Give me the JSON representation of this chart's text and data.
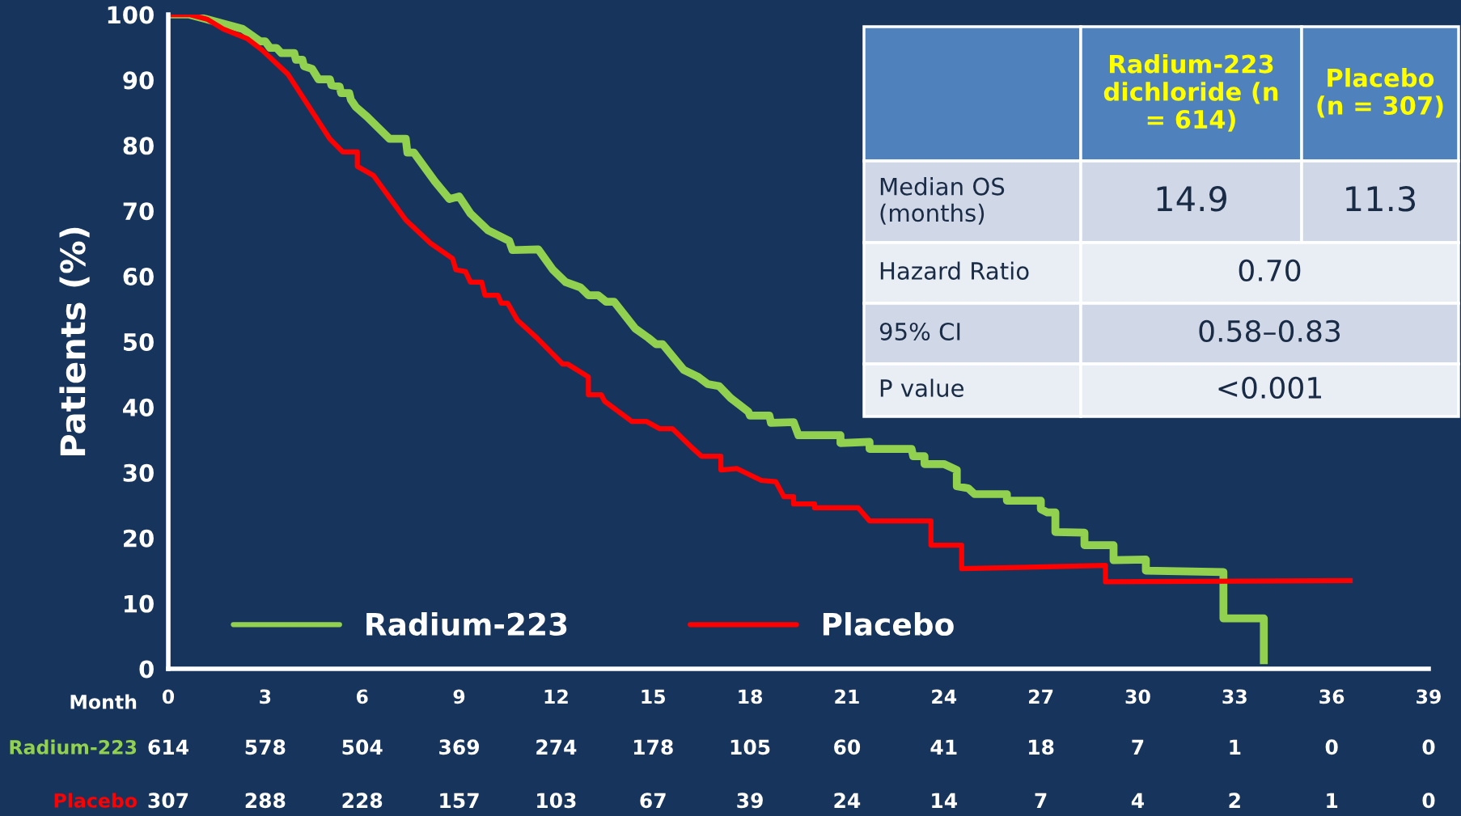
{
  "chart_data": {
    "type": "line",
    "xlabel": "Month",
    "ylabel": "Patients (%)",
    "xlim": [
      0,
      39
    ],
    "xticks": [
      0,
      3,
      6,
      9,
      12,
      15,
      18,
      21,
      24,
      27,
      30,
      33,
      36,
      39
    ],
    "ylim": [
      0,
      100
    ],
    "yticks": [
      0,
      10,
      20,
      30,
      40,
      50,
      60,
      70,
      80,
      90,
      100
    ],
    "grid": false,
    "legend": "lower left",
    "line_style": "solid",
    "marker": "none",
    "series": [
      {
        "name": "Radium-223",
        "color": "#92d050",
        "x": [
          0,
          0.65,
          2.3,
          2.85,
          3.0,
          3.15,
          3.35,
          3.5,
          3.9,
          3.95,
          4.15,
          4.2,
          4.45,
          4.65,
          5.0,
          5.05,
          5.3,
          5.35,
          5.6,
          5.65,
          5.8,
          6.15,
          6.85,
          7.35,
          7.4,
          7.6,
          8.25,
          8.7,
          9.0,
          9.35,
          9.9,
          10.15,
          10.55,
          10.65,
          11.45,
          11.9,
          12.3,
          12.75,
          13.0,
          13.3,
          13.55,
          13.8,
          14.45,
          14.85,
          15.1,
          15.3,
          15.95,
          16.4,
          16.7,
          17.05,
          17.4,
          17.95,
          18.0,
          18.6,
          18.65,
          19.35,
          19.5,
          20.8,
          20.8,
          21.7,
          21.7,
          23.0,
          23.05,
          23.4,
          23.4,
          24.0,
          24.4,
          24.4,
          24.75,
          24.95,
          25.95,
          25.95,
          27.0,
          27.0,
          27.2,
          27.45,
          27.45,
          28.35,
          28.35,
          29.25,
          29.25,
          30.25,
          30.25,
          32.65,
          32.65,
          33.9,
          33.9
        ],
        "values": [
          100,
          100,
          97.8,
          95.9,
          95.9,
          94.9,
          94.9,
          94.1,
          94.1,
          93.1,
          93.1,
          92.1,
          91.7,
          90.1,
          90.1,
          89.2,
          89,
          88,
          88,
          87,
          85.9,
          84.4,
          81,
          81,
          78.9,
          78.9,
          74.5,
          71.8,
          72.2,
          69.6,
          67,
          66.4,
          65.4,
          64,
          64.1,
          61,
          59.1,
          58.3,
          57.1,
          57.1,
          56.1,
          56.1,
          52,
          50.6,
          49.6,
          49.6,
          45.7,
          44.6,
          43.5,
          43.2,
          41.4,
          39.3,
          38.7,
          38.7,
          37.6,
          37.7,
          35.7,
          35.7,
          34.5,
          34.7,
          33.6,
          33.6,
          32.5,
          32.5,
          31.3,
          31.3,
          30.4,
          27.9,
          27.6,
          26.7,
          26.7,
          25.7,
          25.7,
          24.4,
          23.9,
          23.9,
          20.9,
          20.8,
          18.9,
          18.9,
          16.6,
          16.7,
          15.0,
          14.8,
          7.7,
          7.7,
          0.7
        ]
      },
      {
        "name": "Placebo",
        "color": "#ff0000",
        "x": [
          0,
          0.65,
          1.2,
          1.7,
          2.45,
          2.9,
          3.7,
          5.0,
          5.4,
          5.85,
          5.85,
          6.35,
          7.35,
          8.1,
          8.8,
          8.9,
          9.2,
          9.35,
          9.7,
          9.8,
          10.2,
          10.3,
          10.5,
          10.8,
          11.4,
          12.2,
          12.35,
          13.0,
          13.0,
          13.4,
          13.5,
          13.8,
          14.35,
          14.8,
          15.2,
          15.6,
          16.25,
          16.5,
          17.1,
          17.1,
          17.6,
          18.35,
          18.8,
          19.05,
          19.35,
          19.35,
          20.0,
          20.0,
          21.35,
          21.7,
          23.6,
          23.6,
          24.55,
          24.55,
          29.0,
          29.0,
          36.65
        ],
        "values": [
          100,
          100,
          99.3,
          97.8,
          96.3,
          94.6,
          90.9,
          81,
          79,
          79,
          76.8,
          75.4,
          68.6,
          65.1,
          62.7,
          61,
          60.7,
          59.1,
          59.1,
          57.1,
          57.1,
          55.9,
          55.9,
          53.3,
          50.6,
          46.6,
          46.6,
          44.6,
          41.9,
          41.9,
          40.9,
          39.8,
          37.8,
          37.8,
          36.7,
          36.7,
          33.6,
          32.5,
          32.5,
          30.4,
          30.6,
          28.8,
          28.6,
          26.3,
          26.3,
          25.2,
          25.2,
          24.6,
          24.6,
          22.6,
          22.6,
          18.9,
          18.9,
          15.3,
          15.8,
          13.3,
          13.5
        ]
      }
    ],
    "annotations": [
      "Radium-223 dichloride (n = 614)",
      "Placebo (n = 307)",
      "Median OS (months)",
      "14.9",
      "11.3",
      "Hazard Ratio",
      "0.70",
      "95% CI",
      "0.58–0.83",
      "P value",
      "<0.001",
      "614",
      "578",
      "504",
      "369",
      "274",
      "178",
      "105",
      "60",
      "41",
      "18",
      "7",
      "1",
      "0",
      "0",
      "307",
      "288",
      "228",
      "157",
      "103",
      "67",
      "39",
      "24",
      "14",
      "7",
      "4",
      "2",
      "1",
      "0"
    ]
  }
}
